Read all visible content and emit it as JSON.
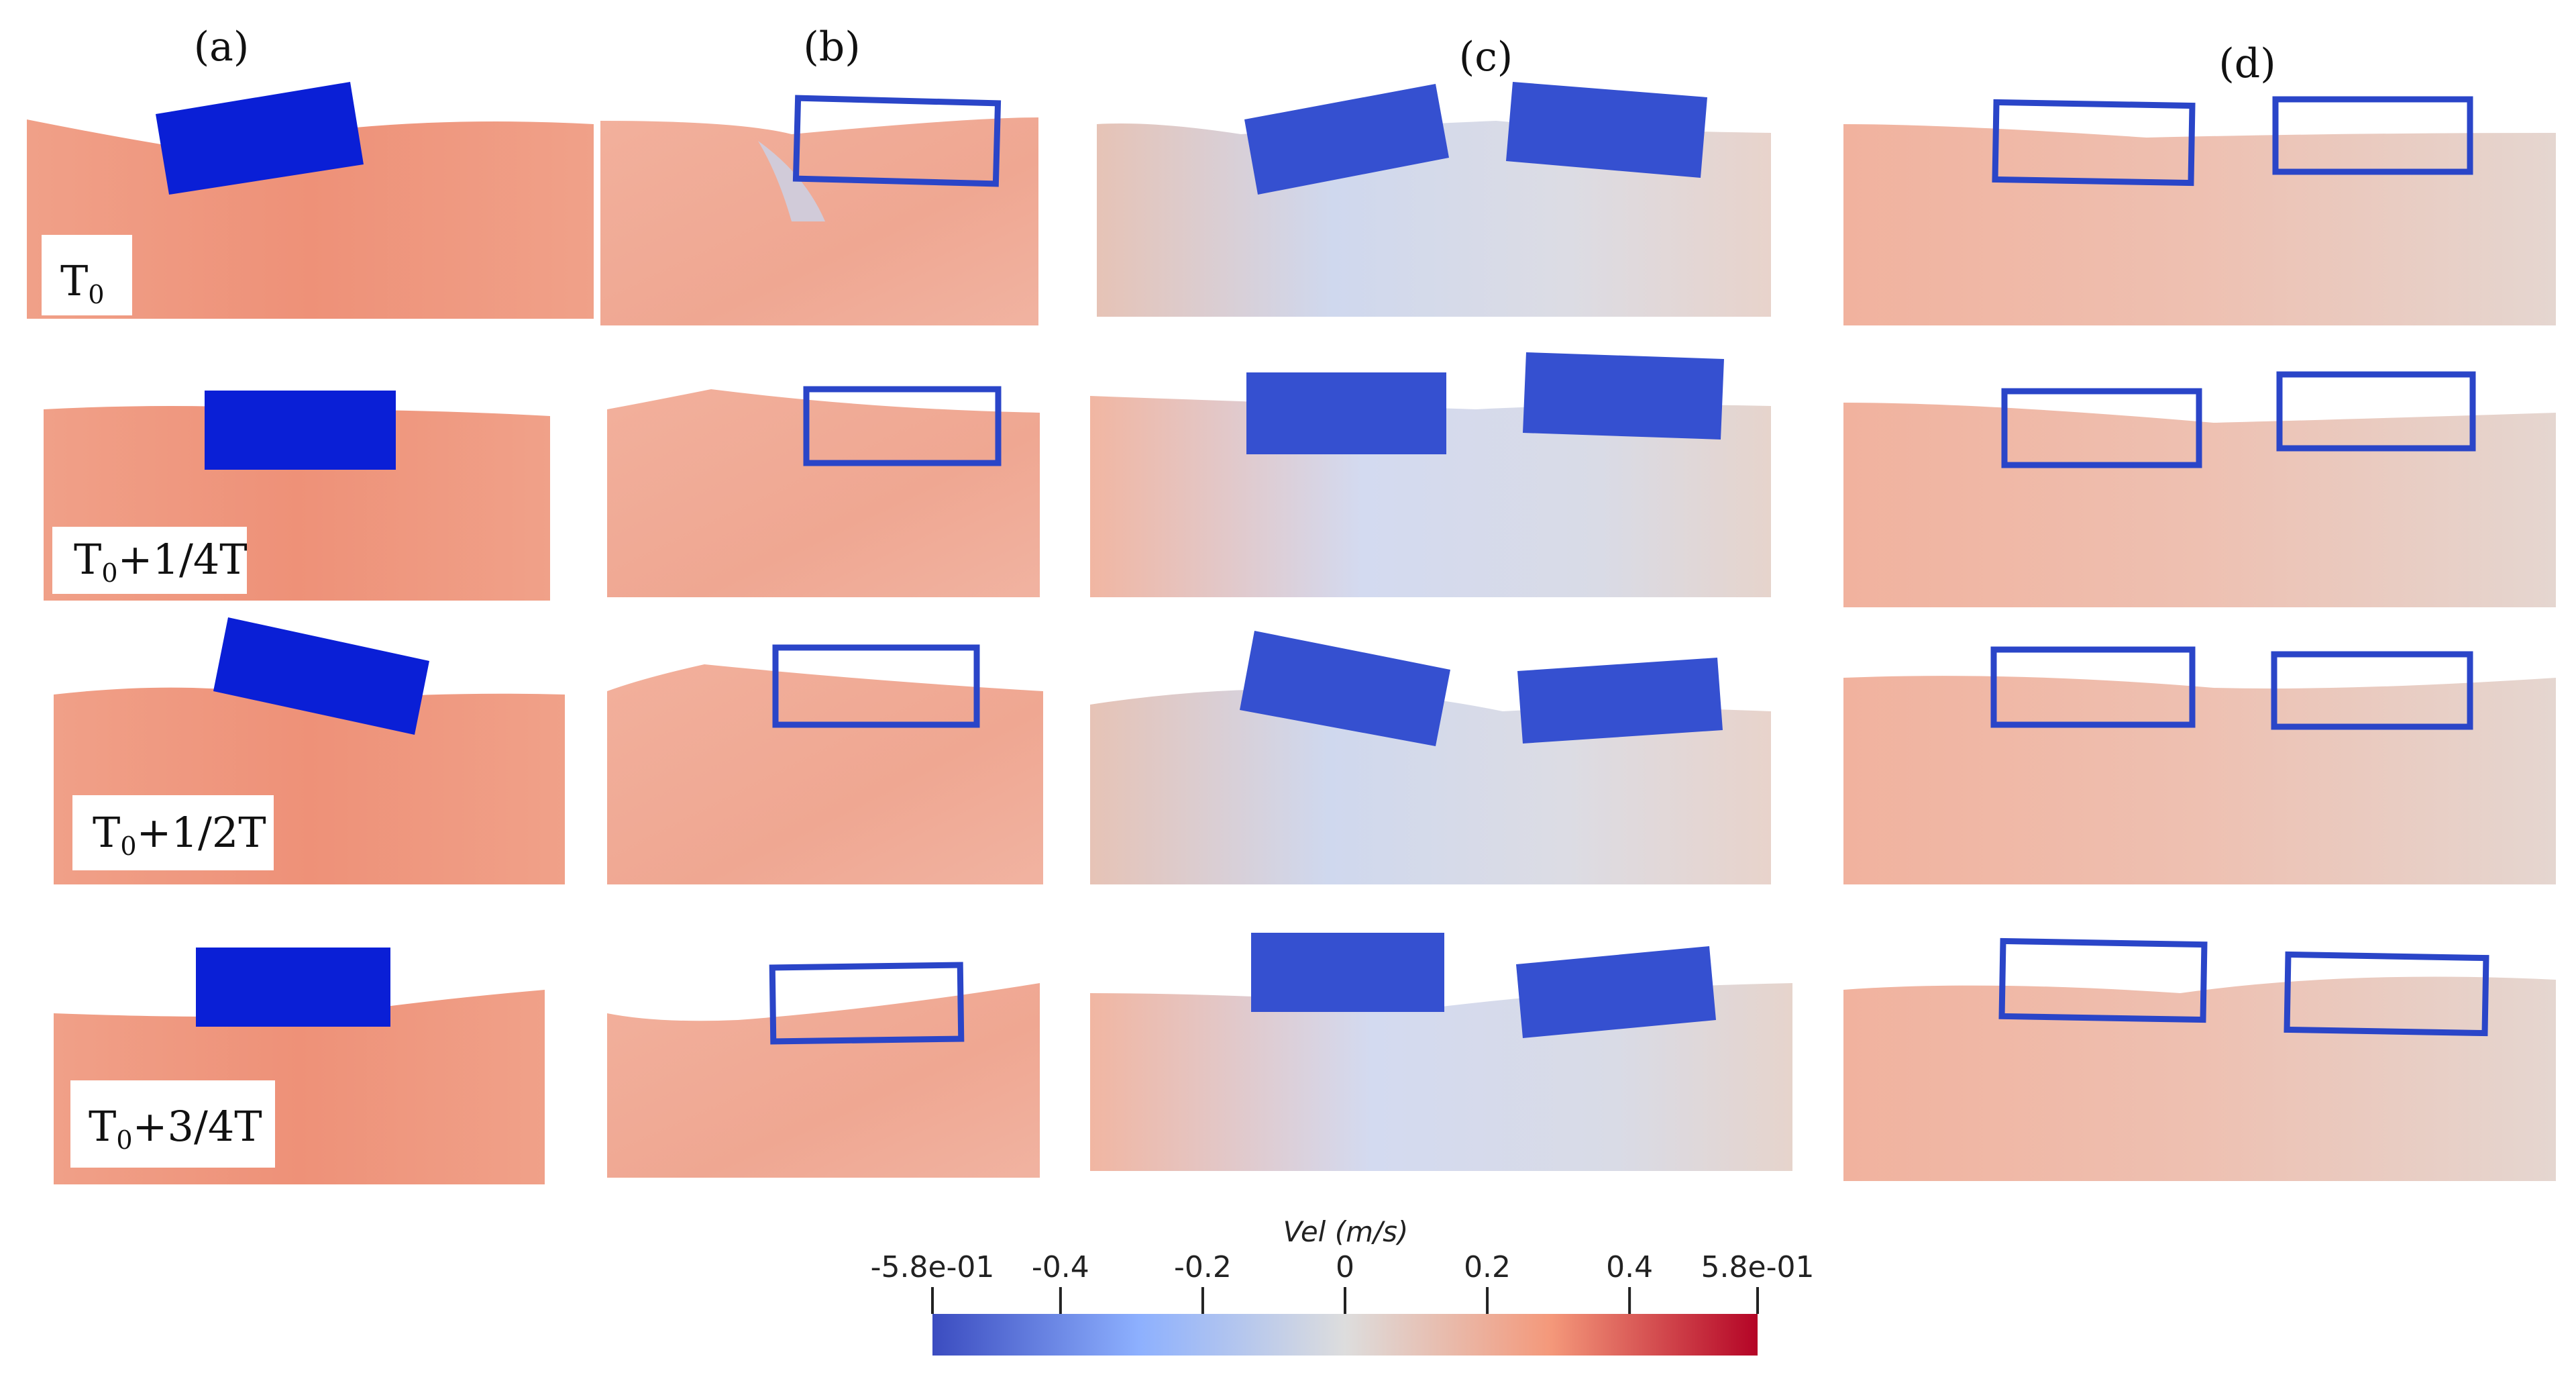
{
  "column_labels": [
    "(a)",
    "(b)",
    "(c)",
    "(d)"
  ],
  "time_labels": [
    {
      "base": "T",
      "sub": "0",
      "rest": ""
    },
    {
      "base": "T",
      "sub": "0",
      "rest": "+1/4T"
    },
    {
      "base": "T",
      "sub": "0",
      "rest": "+1/2T"
    },
    {
      "base": "T",
      "sub": "0",
      "rest": "+3/4T"
    }
  ],
  "colorbar": {
    "title": "Vel (m/s)",
    "min": -0.58,
    "max": 0.58,
    "ticks": [
      {
        "value": -0.58,
        "label": "-5.8e-01"
      },
      {
        "value": -0.4,
        "label": "-0.4"
      },
      {
        "value": -0.2,
        "label": "-0.2"
      },
      {
        "value": 0,
        "label": "0"
      },
      {
        "value": 0.2,
        "label": "0.2"
      },
      {
        "value": 0.4,
        "label": "0.4"
      },
      {
        "value": 0.58,
        "label": "5.8e-01"
      }
    ],
    "colors": {
      "low": "#3b4cc0",
      "mid": "#dddddd",
      "high": "#b40426"
    }
  },
  "colors": {
    "solid_body": "#0a1fd6",
    "solid_body_c": "#3550d0",
    "frame": "#2a45c8",
    "fluid_warm": "#f0a088",
    "fluid_light": "#e9d2ca",
    "fluid_cool": "#c9d3ea"
  }
}
